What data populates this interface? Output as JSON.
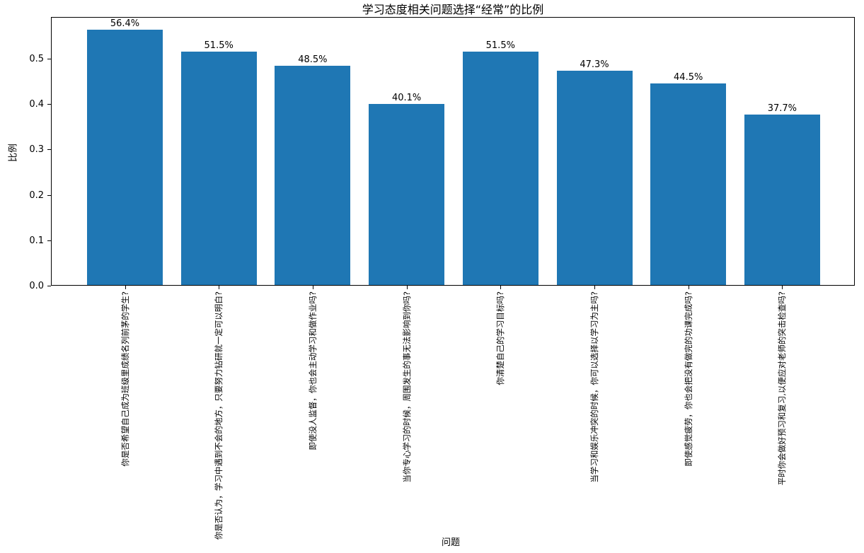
{
  "chart_data": {
    "type": "bar",
    "title": "学习态度相关问题选择“经常”的比例",
    "xlabel": "问题",
    "ylabel": "比例",
    "categories": [
      "你是否希望自己成为班级里成绩名列前茅的学生?",
      "你是否认为，学习中遇到不会的地方，只要努力钻研就一定可以明白?",
      "即使没人监督，你也会主动学习和做作业吗?",
      "当你专心学习的时候，周围发生的事无法影响到你吗?",
      "你清楚自己的学习目标吗?",
      "当学习和娱乐冲突的时候，你可以选择以学习为主吗?",
      "即使感觉疲劳，你也会把没有做完的功课完成吗?",
      "平时你会做好预习和复习,以便应对老师的突击检查吗?"
    ],
    "values": [
      0.564,
      0.515,
      0.485,
      0.401,
      0.515,
      0.473,
      0.445,
      0.377
    ],
    "value_labels": [
      "56.4%",
      "51.5%",
      "48.5%",
      "40.1%",
      "51.5%",
      "47.3%",
      "44.5%",
      "37.7%"
    ],
    "ytick_labels": [
      "0.0",
      "0.1",
      "0.2",
      "0.3",
      "0.4",
      "0.5"
    ],
    "yticks": [
      0.0,
      0.1,
      0.2,
      0.3,
      0.4,
      0.5
    ],
    "ylim": [
      0,
      0.592
    ],
    "bar_color": "#1f77b4",
    "grid": false,
    "legend": null
  }
}
